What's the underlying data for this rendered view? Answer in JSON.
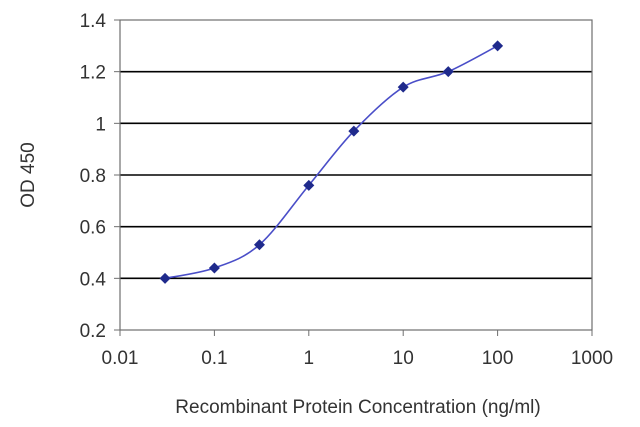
{
  "chart_data": {
    "type": "line",
    "title": "",
    "xlabel": "Recombinant Protein Concentration (ng/ml)",
    "ylabel": "OD 450",
    "x_scale": "log",
    "xlim": [
      0.01,
      1000
    ],
    "ylim": [
      0.2,
      1.4
    ],
    "x_ticks": [
      "0.01",
      "0.1",
      "1",
      "10",
      "100",
      "1000"
    ],
    "y_ticks": [
      "0.2",
      "0.4",
      "0.6",
      "0.8",
      "1",
      "1.2",
      "1.4"
    ],
    "grid": "horizontal",
    "legend": "none",
    "series": [
      {
        "x": [
          0.03,
          0.1,
          0.3,
          1,
          3,
          10,
          30,
          100
        ],
        "y": [
          0.4,
          0.44,
          0.53,
          0.76,
          0.97,
          1.14,
          1.2,
          1.3
        ]
      }
    ],
    "colors": {
      "line": "#4a4ec8",
      "marker": "#1f2a8c",
      "grid": "#000000",
      "plot_bg": "#ffffff"
    }
  }
}
